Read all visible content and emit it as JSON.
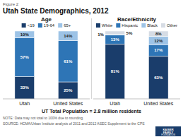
{
  "title": "Utah State Demographics, 2012",
  "subtitle": "UT Total Population = 2.8 million residents",
  "annotations": [
    "Figure 2",
    "NOTE: Data may not total to 100% due to rounding.",
    "SOURCE: HCMA/Urban Institute analysis of 2011 and 2012 ASEC Supplement to the CPS",
    "KAISER",
    "FAMILY",
    "FOUNDATION"
  ],
  "chart_data": [
    {
      "type": "bar",
      "title": "Age",
      "stacked": true,
      "data_labels": true,
      "tick_labels": "x",
      "legend": "top",
      "categories": [
        "Utah",
        "United States"
      ],
      "ylim": [
        0,
        100
      ],
      "series": [
        {
          "name": "<19",
          "color": "#1a3d6b",
          "values": [
            33,
            25
          ],
          "value_labels": [
            "33%",
            "25%"
          ]
        },
        {
          "name": "19-64",
          "color": "#2e75b6",
          "values": [
            57,
            61
          ],
          "value_labels": [
            "57%",
            "61%"
          ]
        },
        {
          "name": "65+",
          "color": "#9dc3e6",
          "values": [
            10,
            14
          ],
          "value_labels": [
            "10%",
            "14%"
          ]
        }
      ]
    },
    {
      "type": "bar",
      "title": "Race/Ethnicity",
      "stacked": true,
      "data_labels": true,
      "tick_labels": "x",
      "legend": "top",
      "categories": [
        "Utah",
        "United States"
      ],
      "ylim": [
        0,
        100
      ],
      "series": [
        {
          "name": "White",
          "color": "#1a3d6b",
          "values": [
            81,
            63
          ],
          "value_labels": [
            "81%",
            "63%"
          ]
        },
        {
          "name": "Hispanic",
          "color": "#2e75b6",
          "values": [
            13,
            17
          ],
          "value_labels": [
            "13%",
            "17%"
          ]
        },
        {
          "name": "Black",
          "color": "#9dc3e6",
          "values": [
            1,
            12
          ],
          "value_labels": [
            "1%",
            "12%"
          ]
        },
        {
          "name": "Other",
          "color": "#d6dce4",
          "values": [
            5,
            8
          ],
          "value_labels": [
            "5%",
            "8%"
          ]
        }
      ]
    }
  ]
}
